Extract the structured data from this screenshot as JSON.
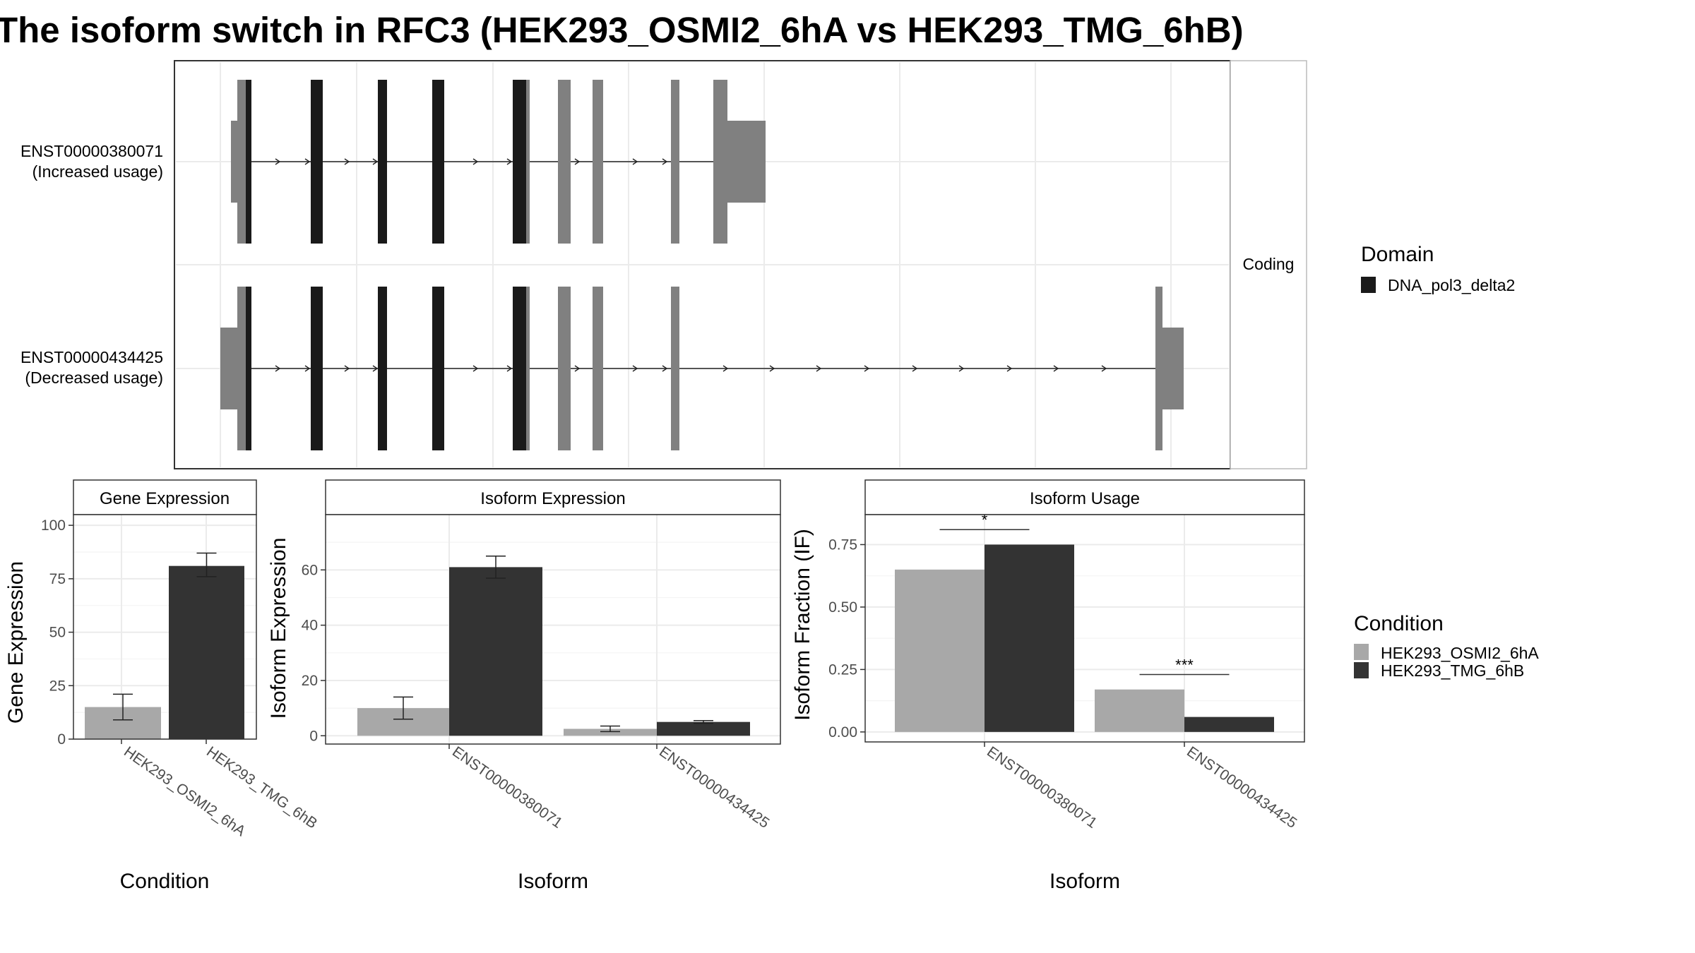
{
  "title": "The isoform switch in RFC3 (HEK293_OSMI2_6hA vs HEK293_TMG_6hB)",
  "colors": {
    "domain": "#1a1a1a",
    "exon": "#808080",
    "cond1": "#a8a8a8",
    "cond2": "#333333",
    "strip_bg": "#ffffff",
    "grid": "#ebebeb"
  },
  "transcripts": {
    "strip_label": "Coding",
    "items": [
      {
        "label_id": "ENST00000380071",
        "label_usage": "(Increased usage)"
      },
      {
        "label_id": "ENST00000434425",
        "label_usage": "(Decreased usage)"
      }
    ]
  },
  "domain_legend": {
    "title": "Domain",
    "items": [
      {
        "name": "DNA_pol3_delta2",
        "color": "#1a1a1a"
      }
    ]
  },
  "condition_legend": {
    "title": "Condition",
    "items": [
      {
        "name": "HEK293_OSMI2_6hA",
        "color": "#a8a8a8"
      },
      {
        "name": "HEK293_TMG_6hB",
        "color": "#333333"
      }
    ]
  },
  "chart_data": [
    {
      "type": "bar",
      "panel": "gene_expression",
      "strip": "Gene Expression",
      "xlabel": "Condition",
      "ylabel": "Gene Expression",
      "ylim": [
        0,
        105
      ],
      "yticks": [
        0,
        25,
        50,
        75,
        100
      ],
      "categories": [
        "HEK293_OSMI2_6hA",
        "HEK293_TMG_6hB"
      ],
      "values": [
        15,
        81
      ],
      "error": [
        [
          9,
          21
        ],
        [
          76,
          87
        ]
      ]
    },
    {
      "type": "bar",
      "panel": "isoform_expression",
      "strip": "Isoform Expression",
      "xlabel": "Isoform",
      "ylabel": "Isoform Expression",
      "ylim": [
        -3,
        80
      ],
      "yticks": [
        0,
        20,
        40,
        60
      ],
      "categories": [
        "ENST00000380071",
        "ENST00000434425"
      ],
      "series": [
        {
          "name": "HEK293_OSMI2_6hA",
          "values": [
            10,
            2.5
          ],
          "error": [
            [
              6,
              14
            ],
            [
              1.5,
              3.5
            ]
          ]
        },
        {
          "name": "HEK293_TMG_6hB",
          "values": [
            61,
            5
          ],
          "error": [
            [
              57,
              65
            ],
            [
              4.5,
              5.5
            ]
          ]
        }
      ]
    },
    {
      "type": "bar",
      "panel": "isoform_usage",
      "strip": "Isoform Usage",
      "xlabel": "Isoform",
      "ylabel": "Isoform Fraction (IF)",
      "ylim": [
        -0.04,
        0.87
      ],
      "yticks": [
        0.0,
        0.25,
        0.5,
        0.75
      ],
      "ytick_labels": [
        "0.00",
        "0.25",
        "0.50",
        "0.75"
      ],
      "categories": [
        "ENST00000380071",
        "ENST00000434425"
      ],
      "series": [
        {
          "name": "HEK293_OSMI2_6hA",
          "values": [
            0.65,
            0.17
          ]
        },
        {
          "name": "HEK293_TMG_6hB",
          "values": [
            0.75,
            0.06
          ]
        }
      ],
      "significance": [
        "*",
        "***"
      ]
    }
  ]
}
